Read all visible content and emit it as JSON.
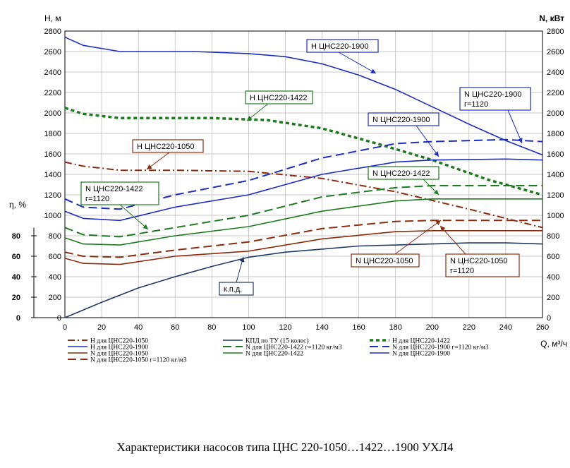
{
  "chart_data": {
    "type": "line",
    "title": "Характеристики насосов типа ЦНС 220-1050…1422…1900 УХЛ4",
    "xlabel": "Q, м³/ч",
    "ylabel_left": "Н, м",
    "ylabel_right": "N, кВт",
    "ylabel_eff": "η, %",
    "xlim": [
      0,
      260
    ],
    "ylim": [
      0,
      2800
    ],
    "x_ticks": [
      0,
      20,
      40,
      60,
      80,
      100,
      120,
      140,
      160,
      180,
      200,
      220,
      240,
      260
    ],
    "y_ticks": [
      0,
      200,
      400,
      600,
      800,
      1000,
      1200,
      1400,
      1600,
      1800,
      2000,
      2200,
      2400,
      2600,
      2800
    ],
    "eff_ticks": [
      0,
      20,
      40,
      60,
      80
    ],
    "grid": true,
    "legend_position": "bottom",
    "series": [
      {
        "name": "Н для ЦНС220-1050",
        "color": "#8B2A0C",
        "style": "dashdot",
        "width": 2,
        "x": [
          0,
          10,
          30,
          60,
          100,
          140,
          180,
          220,
          260
        ],
        "y": [
          1520,
          1480,
          1440,
          1440,
          1430,
          1360,
          1230,
          1060,
          880
        ]
      },
      {
        "name": "КПД по ТУ (15 колес)",
        "color": "#1F3864",
        "style": "solid",
        "width": 1.6,
        "x": [
          0,
          20,
          40,
          60,
          80,
          100,
          120,
          140,
          160,
          180,
          200,
          220,
          240,
          260
        ],
        "y": [
          0,
          150,
          290,
          400,
          500,
          590,
          640,
          670,
          700,
          710,
          720,
          730,
          730,
          720
        ]
      },
      {
        "name": "Н для ЦНС220-1422",
        "color": "#1E7A1E",
        "style": "dotted",
        "width": 3.5,
        "x": [
          0,
          10,
          30,
          60,
          80,
          110,
          140,
          170,
          200,
          230,
          260
        ],
        "y": [
          2050,
          1990,
          1950,
          1950,
          1950,
          1930,
          1850,
          1700,
          1540,
          1350,
          1200
        ]
      },
      {
        "name": "Н для ЦНС220-1900",
        "color": "#1A2DBF",
        "style": "solid",
        "width": 1.6,
        "x": [
          0,
          10,
          30,
          60,
          70,
          100,
          120,
          140,
          160,
          180,
          200,
          220,
          240,
          260
        ],
        "y": [
          2740,
          2660,
          2600,
          2600,
          2600,
          2580,
          2550,
          2480,
          2370,
          2230,
          2060,
          1890,
          1730,
          1590
        ]
      },
      {
        "name": "N для ЦНС220-1422 г=1120 кг/м3",
        "color": "#1E7A1E",
        "style": "dashed",
        "width": 2,
        "x": [
          0,
          10,
          30,
          60,
          100,
          140,
          180,
          200,
          260
        ],
        "y": [
          880,
          810,
          790,
          880,
          1000,
          1180,
          1270,
          1290,
          1290
        ]
      },
      {
        "name": "N для ЦНС220-1900 г=1120 кг/м3",
        "color": "#1A2DBF",
        "style": "dashed",
        "width": 2,
        "x": [
          0,
          10,
          30,
          60,
          100,
          140,
          180,
          200,
          240,
          260
        ],
        "y": [
          1160,
          1080,
          1060,
          1200,
          1340,
          1560,
          1700,
          1720,
          1740,
          1720
        ]
      },
      {
        "name": "N для ЦНС220-1050",
        "color": "#8B2A0C",
        "style": "solid",
        "width": 1.6,
        "x": [
          0,
          10,
          30,
          60,
          100,
          140,
          180,
          200,
          260
        ],
        "y": [
          580,
          530,
          520,
          600,
          650,
          770,
          840,
          850,
          850
        ]
      },
      {
        "name": "N для ЦНС220-1422",
        "color": "#1E7A1E",
        "style": "solid",
        "width": 1.6,
        "x": [
          0,
          10,
          30,
          60,
          100,
          140,
          180,
          200,
          260
        ],
        "y": [
          780,
          720,
          710,
          800,
          890,
          1040,
          1140,
          1160,
          1160
        ]
      },
      {
        "name": "N для ЦНС220-1900",
        "color": "#1A2DBF",
        "style": "solid",
        "width": 1.6,
        "x": [
          0,
          10,
          30,
          60,
          100,
          140,
          180,
          200,
          240,
          260
        ],
        "y": [
          1040,
          970,
          950,
          1080,
          1200,
          1400,
          1520,
          1540,
          1550,
          1540
        ]
      },
      {
        "name": "N для ЦНС220-1050 г=1120 кг/м3",
        "color": "#8B2A0C",
        "style": "dashed",
        "width": 2,
        "x": [
          0,
          10,
          30,
          60,
          100,
          140,
          180,
          200,
          260
        ],
        "y": [
          640,
          600,
          590,
          660,
          740,
          870,
          940,
          950,
          950
        ]
      }
    ],
    "annotations": [
      {
        "text": "Н ЦНС220-1900",
        "color": "#1A2DBF"
      },
      {
        "text": "N ЦНС220-1900",
        "line2": "г=1120",
        "color": "#1A2DBF"
      },
      {
        "text": "Н ЦНС220-1422",
        "color": "#1E7A1E"
      },
      {
        "text": "N ЦНС220-1900",
        "color": "#1A2DBF"
      },
      {
        "text": "Н ЦНС220-1050",
        "color": "#8B2A0C"
      },
      {
        "text": "N ЦНС220-1422",
        "color": "#1E7A1E"
      },
      {
        "text": "N ЦНС220-1422",
        "line2": "г=1120",
        "color": "#1E7A1E"
      },
      {
        "text": "N ЦНС220-1050",
        "color": "#8B2A0C"
      },
      {
        "text": "N ЦНС220-1050",
        "line2": "г=1120",
        "color": "#8B2A0C"
      },
      {
        "text": "к.п.д.",
        "color": "#1F3864"
      }
    ]
  }
}
